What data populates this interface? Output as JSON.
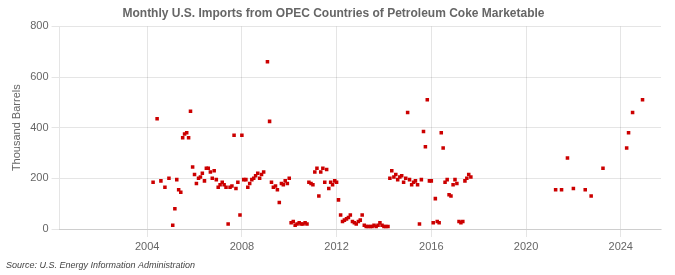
{
  "chart_data": {
    "type": "scatter",
    "title": "Monthly U.S. Imports from OPEC Countries of Petroleum Coke Marketable",
    "ylabel": "Thousand Barrels",
    "source": "Source: U.S. Energy Information Administration",
    "color": "#cc0000",
    "marker": "square",
    "grid": true,
    "xlim": [
      2000.3,
      2025.7
    ],
    "xticks": [
      2004,
      2008,
      2012,
      2016,
      2020,
      2024
    ],
    "ylim": [
      0,
      800
    ],
    "yticks": [
      0,
      200,
      400,
      600,
      800
    ],
    "x": [
      2004.25,
      2004.42,
      2004.58,
      2004.75,
      2004.92,
      2005.08,
      2005.17,
      2005.25,
      2005.33,
      2005.42,
      2005.5,
      2005.58,
      2005.67,
      2005.75,
      2005.83,
      2005.92,
      2006.0,
      2006.08,
      2006.17,
      2006.25,
      2006.33,
      2006.42,
      2006.5,
      2006.58,
      2006.67,
      2006.75,
      2006.83,
      2006.92,
      2007.0,
      2007.08,
      2007.17,
      2007.25,
      2007.33,
      2007.42,
      2007.5,
      2007.58,
      2007.67,
      2007.75,
      2007.83,
      2007.92,
      2008.0,
      2008.08,
      2008.17,
      2008.25,
      2008.33,
      2008.42,
      2008.5,
      2008.58,
      2008.67,
      2008.75,
      2008.83,
      2008.92,
      2009.08,
      2009.17,
      2009.25,
      2009.33,
      2009.42,
      2009.5,
      2009.58,
      2009.67,
      2009.75,
      2009.83,
      2009.92,
      2010.0,
      2010.08,
      2010.17,
      2010.25,
      2010.33,
      2010.42,
      2010.5,
      2010.58,
      2010.67,
      2010.75,
      2010.83,
      2010.92,
      2011.0,
      2011.08,
      2011.17,
      2011.25,
      2011.33,
      2011.42,
      2011.5,
      2011.58,
      2011.67,
      2011.75,
      2011.83,
      2011.92,
      2012.0,
      2012.08,
      2012.17,
      2012.25,
      2012.33,
      2012.42,
      2012.5,
      2012.58,
      2012.67,
      2012.75,
      2012.83,
      2012.92,
      2013.0,
      2013.08,
      2013.17,
      2013.25,
      2013.33,
      2013.42,
      2013.5,
      2013.58,
      2013.67,
      2013.75,
      2013.83,
      2013.92,
      2014.0,
      2014.08,
      2014.17,
      2014.25,
      2014.33,
      2014.42,
      2014.5,
      2014.58,
      2014.67,
      2014.75,
      2014.83,
      2014.92,
      2015.0,
      2015.08,
      2015.17,
      2015.25,
      2015.33,
      2015.42,
      2015.5,
      2015.58,
      2015.67,
      2015.75,
      2015.83,
      2015.92,
      2016.0,
      2016.08,
      2016.17,
      2016.25,
      2016.33,
      2016.42,
      2016.5,
      2016.58,
      2016.67,
      2016.75,
      2016.83,
      2016.92,
      2017.0,
      2017.08,
      2017.17,
      2017.25,
      2017.33,
      2017.42,
      2017.5,
      2017.58,
      2017.67,
      2021.25,
      2021.5,
      2021.75,
      2022.0,
      2022.5,
      2022.75,
      2023.25,
      2024.92,
      2024.5,
      2024.33,
      2024.25
    ],
    "values": [
      185,
      435,
      190,
      165,
      200,
      15,
      80,
      195,
      155,
      145,
      360,
      375,
      380,
      360,
      465,
      245,
      215,
      180,
      200,
      205,
      220,
      190,
      240,
      240,
      225,
      200,
      230,
      195,
      165,
      175,
      185,
      175,
      165,
      20,
      165,
      170,
      370,
      160,
      185,
      55,
      370,
      195,
      195,
      165,
      180,
      195,
      200,
      210,
      220,
      200,
      215,
      225,
      660,
      425,
      185,
      165,
      170,
      155,
      105,
      180,
      175,
      190,
      180,
      200,
      25,
      30,
      15,
      20,
      25,
      20,
      20,
      25,
      20,
      185,
      180,
      175,
      225,
      240,
      130,
      225,
      240,
      185,
      235,
      160,
      185,
      175,
      190,
      185,
      115,
      55,
      30,
      35,
      40,
      45,
      55,
      30,
      25,
      20,
      30,
      35,
      55,
      15,
      10,
      10,
      10,
      10,
      15,
      10,
      15,
      25,
      15,
      10,
      10,
      10,
      200,
      230,
      205,
      215,
      195,
      205,
      210,
      185,
      200,
      460,
      195,
      175,
      185,
      190,
      175,
      20,
      195,
      385,
      325,
      510,
      190,
      190,
      25,
      120,
      30,
      25,
      380,
      320,
      185,
      195,
      135,
      130,
      175,
      195,
      180,
      30,
      25,
      30,
      190,
      200,
      215,
      205,
      155,
      155,
      280,
      160,
      155,
      130,
      240,
      510,
      460,
      380,
      320
    ]
  }
}
